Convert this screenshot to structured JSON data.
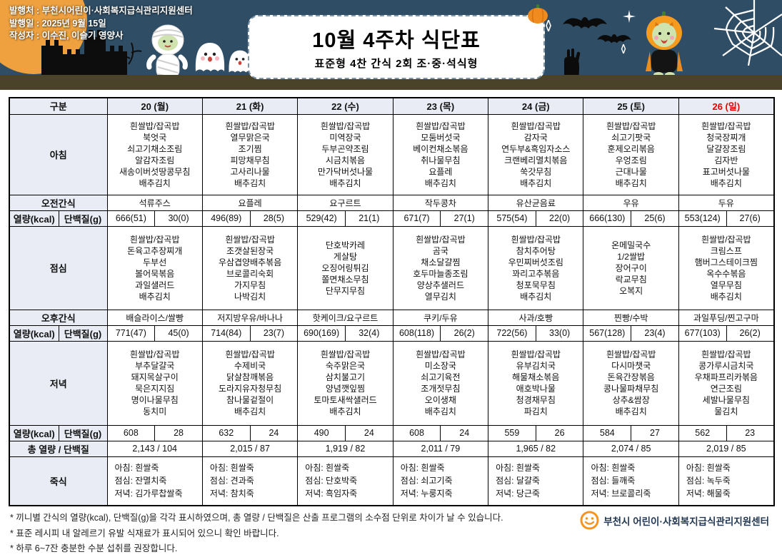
{
  "banner": {
    "publisher": "발행처 : 부천시어린이·사회복지급식관리지원센터",
    "publish_date": "발행일 : 2025년 9월 15일",
    "author": "작성자 : 이수진, 이슬기  영양사",
    "title": "10월 4주차 식단표",
    "subtitle": "표준형 4찬 간식 2회 조·중·석식형",
    "decorations": [
      "moon-icon",
      "castle-icon",
      "mummy-icon",
      "ghost-icon",
      "bat-icon",
      "sparkle-icon",
      "pumpkin-icon",
      "pumpkin-kid-icon",
      "spiderweb-icon",
      "zombie-hand-icon"
    ]
  },
  "colors": {
    "banner_bg": "#2f4e66",
    "banner_ground": "#4a4329",
    "moon_orange": "#efa13f",
    "sunday_red": "#e60000",
    "table_header_bg": "#e9ecf5",
    "logo_orange": "#f7941d"
  },
  "table": {
    "corner_label": "구분",
    "days": [
      {
        "label": "20 (월)"
      },
      {
        "label": "21 (화)"
      },
      {
        "label": "22 (수)"
      },
      {
        "label": "23 (목)"
      },
      {
        "label": "24 (금)"
      },
      {
        "label": "25 (토)"
      },
      {
        "label": "26 (일)",
        "color": "#e60000"
      }
    ],
    "row_labels": {
      "breakfast": "아침",
      "am_snack": "오전간식",
      "kcal": "열량(kcal)",
      "protein": "단백질(g)",
      "lunch": "점심",
      "pm_snack": "오후간식",
      "dinner": "저녁",
      "total": "총 열량 / 단백질",
      "porridge": "죽식"
    },
    "breakfast": [
      [
        "흰쌀밥/잡곡밥",
        "북엇국",
        "쇠고기채소조림",
        "알감자조림",
        "새송이버섯땅콩무침",
        "배추김치"
      ],
      [
        "흰쌀밥/잡곡밥",
        "열무맑은국",
        "조기찜",
        "피망채무침",
        "고사리나물",
        "배추김치"
      ],
      [
        "흰쌀밥/잡곡밥",
        "미역장국",
        "두부곤약조림",
        "시금치볶음",
        "만가닥버섯나물",
        "배추김치"
      ],
      [
        "흰쌀밥/잡곡밥",
        "모둠버섯국",
        "베이컨채소볶음",
        "취나물무침",
        "요플레",
        "배추김치"
      ],
      [
        "흰쌀밥/잡곡밥",
        "감자국",
        "연두부&흑임자소스",
        "크랜베리멸치볶음",
        "쑥갓무침",
        "배추김치"
      ],
      [
        "흰쌀밥/잡곡밥",
        "쇠고기팟국",
        "훈제오리볶음",
        "우엉조림",
        "근대나물",
        "배추김치"
      ],
      [
        "흰쌀밥/잡곡밥",
        "청국장찌개",
        "달걀장조림",
        "김자반",
        "표고버섯나물",
        "배추김치"
      ]
    ],
    "am_snack": [
      "석류주스",
      "요플레",
      "요구르트",
      "작두콩차",
      "유산균음료",
      "우유",
      "두유"
    ],
    "energy1": [
      [
        "666(51)",
        "30(0)"
      ],
      [
        "496(89)",
        "28(5)"
      ],
      [
        "529(42)",
        "21(1)"
      ],
      [
        "671(7)",
        "27(1)"
      ],
      [
        "575(54)",
        "22(0)"
      ],
      [
        "666(130)",
        "25(6)"
      ],
      [
        "553(124)",
        "27(6)"
      ]
    ],
    "lunch": [
      [
        "흰쌀밥/잡곡밥",
        "돈육고추장찌개",
        "두부선",
        "볼어묵볶음",
        "과일샐러드",
        "배추김치"
      ],
      [
        "흰쌀밥/잡곡밥",
        "조갯살된장국",
        "우삼겹양배추볶음",
        "브로콜리숙회",
        "가지무침",
        "나박김치"
      ],
      [
        "단호박카레",
        "게살탕",
        "오징어링튀김",
        "쫄면채소무침",
        "단무지무침"
      ],
      [
        "흰쌀밥/잡곡밥",
        "곰국",
        "채소달걀찜",
        "호두마늘종조림",
        "양상추샐러드",
        "열무김치"
      ],
      [
        "흰쌀밥/잡곡밥",
        "참치추어탕",
        "우민찌버섯조림",
        "꽈리고추볶음",
        "청포묵무침",
        "배추김치"
      ],
      [
        "온메밀국수",
        "1/2쌀밥",
        "장어구이",
        "락교무침",
        "오복지"
      ],
      [
        "흰쌀밥/잡곡밥",
        "크림스프",
        "햄버그스테이크찜",
        "옥수수볶음",
        "열무무침",
        "배추김치"
      ]
    ],
    "pm_snack": [
      "배슬라이스/쌀빵",
      "저지방우유/바나나",
      "핫케이크/요구르트",
      "쿠키/두유",
      "사과/호빵",
      "찐빵/수박",
      "과일푸딩/찐고구마"
    ],
    "energy2": [
      [
        "771(47)",
        "45(0)"
      ],
      [
        "714(84)",
        "23(7)"
      ],
      [
        "690(169)",
        "32(4)"
      ],
      [
        "608(118)",
        "26(2)"
      ],
      [
        "722(56)",
        "33(0)"
      ],
      [
        "567(128)",
        "23(4)"
      ],
      [
        "677(103)",
        "26(2)"
      ]
    ],
    "dinner": [
      [
        "흰쌀밥/잡곡밥",
        "부추달걀국",
        "돼지목살구이",
        "묵은지지짐",
        "명이나물무침",
        "동치미"
      ],
      [
        "흰쌀밥/잡곡밥",
        "수제비국",
        "닭살참깨볶음",
        "도라지유자청무침",
        "참나물겉절이",
        "배추김치"
      ],
      [
        "흰쌀밥/잡곡밥",
        "숙주맑은국",
        "삼치불고기",
        "양념깻잎찜",
        "토마토새싹샐러드",
        "배추김치"
      ],
      [
        "흰쌀밥/잡곡밥",
        "미소장국",
        "쇠고기육전",
        "조개젓무침",
        "오이생채",
        "배추김치"
      ],
      [
        "흰쌀밥/잡곡밥",
        "유부김치국",
        "해물채소볶음",
        "애호박나물",
        "청경채무침",
        "파김치"
      ],
      [
        "흰쌀밥/잡곡밥",
        "다시마챗국",
        "돈육간장볶음",
        "콩나물파채무침",
        "상추&쌈장",
        "배추김치"
      ],
      [
        "흰쌀밥/잡곡밥",
        "콩가루시금치국",
        "우채파프리카볶음",
        "연근조림",
        "세발나물무침",
        "물김치"
      ]
    ],
    "energy3": [
      [
        "608",
        "28"
      ],
      [
        "632",
        "24"
      ],
      [
        "490",
        "24"
      ],
      [
        "608",
        "24"
      ],
      [
        "559",
        "26"
      ],
      [
        "584",
        "27"
      ],
      [
        "562",
        "23"
      ]
    ],
    "total": [
      "2,143  /  104",
      "2,015  /  87",
      "1,919  /  82",
      "2,011  /  79",
      "1,965  /  82",
      "2,074  /  85",
      "2,019  /  85"
    ],
    "porridge": [
      [
        "아침: 흰쌀죽",
        "점심: 잔멸치죽",
        "저녁: 김가루찹쌀죽"
      ],
      [
        "아침: 흰쌀죽",
        "점심: 견과죽",
        "저녁: 참치죽"
      ],
      [
        "아침: 흰쌀죽",
        "점심: 단호박죽",
        "저녁: 흑임자죽"
      ],
      [
        "아침: 흰쌀죽",
        "점심: 쇠고기죽",
        "저녁: 누룽지죽"
      ],
      [
        "아침: 흰쌀죽",
        "점심: 달걀죽",
        "저녁: 당근죽"
      ],
      [
        "아침: 흰쌀죽",
        "점심: 들깨죽",
        "저녁: 브로콜리죽"
      ],
      [
        "아침: 흰쌀죽",
        "점심: 녹두죽",
        "저녁: 해물죽"
      ]
    ]
  },
  "footnotes": [
    "* 끼니별 간식의 열량(kcal), 단백질(g)을 각각 표시하였으며, 총 열량 / 단백질은 산출 프로그램의 소수점 단위로 차이가 날 수 있습니다.",
    "* 표준 레시피 내 알레르기 유발 식재료가 표시되어 있으니 확인 바랍니다.",
    "* 하루 6~7잔 충분한 수분 섭취를 권장합니다."
  ],
  "footer": {
    "center_name": "부천시 어린이·사회복지급식관리지원센터"
  }
}
